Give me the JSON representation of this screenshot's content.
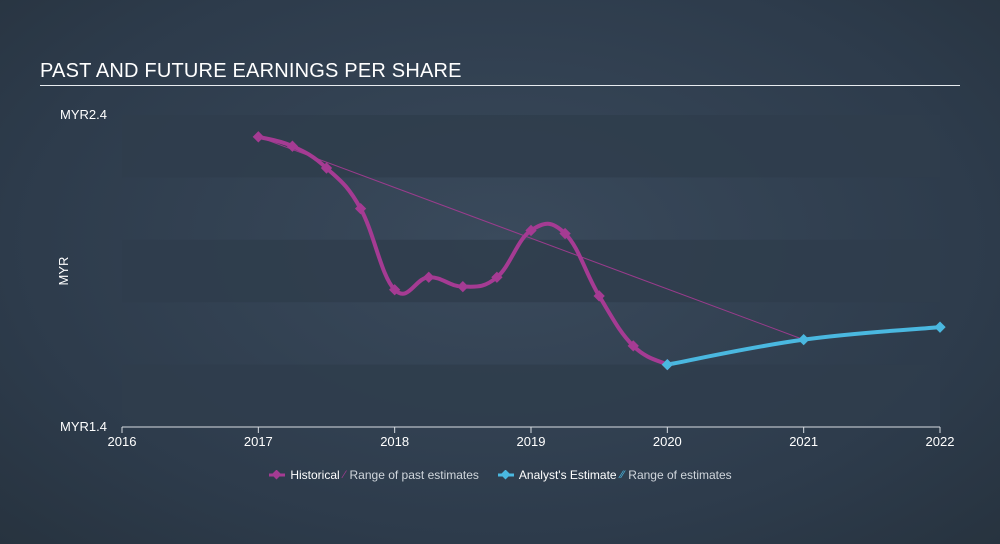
{
  "chart_data": {
    "type": "line",
    "title": "PAST AND FUTURE EARNINGS PER SHARE",
    "ylabel": "MYR",
    "xlabel": "",
    "ylim": [
      1.4,
      2.4
    ],
    "xlim": [
      2016,
      2022
    ],
    "y_tick_labels": [
      "MYR2.4",
      "MYR1.4"
    ],
    "x_tick_labels": [
      "2016",
      "2017",
      "2018",
      "2019",
      "2020",
      "2021",
      "2022"
    ],
    "x_ticks": [
      2016,
      2017,
      2018,
      2019,
      2020,
      2021,
      2022
    ],
    "series": [
      {
        "name": "Historical",
        "color": "#a53b93",
        "x": [
          2017.0,
          2017.25,
          2017.5,
          2017.75,
          2018.0,
          2018.25,
          2018.5,
          2018.75,
          2019.0,
          2019.25,
          2019.5,
          2019.75,
          2020.0
        ],
        "y": [
          2.33,
          2.3,
          2.23,
          2.1,
          1.84,
          1.88,
          1.85,
          1.88,
          2.03,
          2.02,
          1.82,
          1.66,
          1.6
        ]
      },
      {
        "name": "Analyst's Estimate",
        "color": "#4ab8e0",
        "x": [
          2020.0,
          2021.0,
          2022.0
        ],
        "y": [
          1.6,
          1.68,
          1.72
        ]
      },
      {
        "name": "Range of past estimates",
        "color": "#a53b93",
        "x": [
          2017.0,
          2021.0
        ],
        "y": [
          2.33,
          1.68
        ]
      }
    ],
    "legend": [
      {
        "label": "Historical",
        "marker": "diamond",
        "color": "#a53b93"
      },
      {
        "label": "Range of past estimates",
        "marker": "hatch",
        "color": "#a53b93"
      },
      {
        "label": "Analyst's Estimate",
        "marker": "diamond",
        "color": "#4ab8e0"
      },
      {
        "label": "Range of estimates",
        "marker": "hatch",
        "color": "#4ab8e0"
      }
    ],
    "legend_position": "bottom-center"
  }
}
